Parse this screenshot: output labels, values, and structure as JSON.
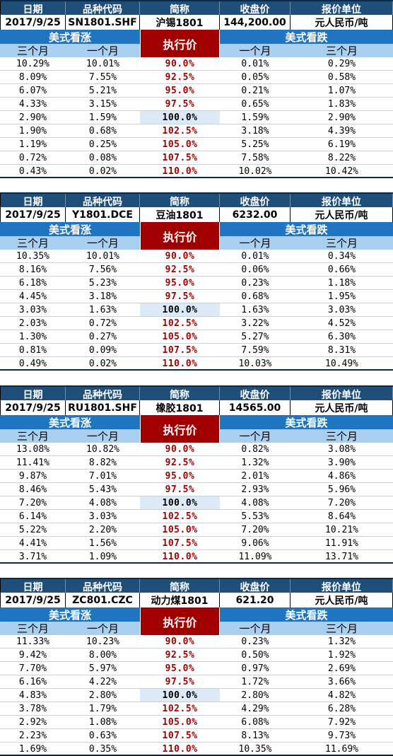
{
  "columns": {
    "date": "日期",
    "code": "品种代码",
    "short_name": "简称",
    "close": "收盘价",
    "unit": "报价单位"
  },
  "labels": {
    "us_call": "美式看涨",
    "us_put": "美式看跌",
    "strike": "执行价",
    "three_month": "三个月",
    "one_month": "一个月"
  },
  "blocks": [
    {
      "date": "2017/9/25",
      "code": "SN1801.SHF",
      "name": "沪锡1801",
      "close": "144,200.00",
      "unit": "元人民币/吨",
      "rows": [
        [
          "10.29%",
          "10.01%",
          "90.0%",
          "0.01%",
          "0.29%"
        ],
        [
          "8.09%",
          "7.55%",
          "92.5%",
          "0.05%",
          "0.58%"
        ],
        [
          "6.07%",
          "5.21%",
          "95.0%",
          "0.21%",
          "1.07%"
        ],
        [
          "4.33%",
          "3.15%",
          "97.5%",
          "0.65%",
          "1.83%"
        ],
        [
          "2.90%",
          "1.59%",
          "100.0%",
          "1.59%",
          "2.90%"
        ],
        [
          "1.90%",
          "0.68%",
          "102.5%",
          "3.18%",
          "4.39%"
        ],
        [
          "1.19%",
          "0.25%",
          "105.0%",
          "5.25%",
          "6.19%"
        ],
        [
          "0.72%",
          "0.08%",
          "107.5%",
          "7.58%",
          "8.22%"
        ],
        [
          "0.43%",
          "0.02%",
          "110.0%",
          "10.02%",
          "10.42%"
        ]
      ]
    },
    {
      "date": "2017/9/25",
      "code": "Y1801.DCE",
      "name": "豆油1801",
      "close": "6232.00",
      "unit": "元人民币/吨",
      "rows": [
        [
          "10.35%",
          "10.01%",
          "90.0%",
          "0.01%",
          "0.34%"
        ],
        [
          "8.16%",
          "7.56%",
          "92.5%",
          "0.06%",
          "0.66%"
        ],
        [
          "6.18%",
          "5.23%",
          "95.0%",
          "0.23%",
          "1.18%"
        ],
        [
          "4.45%",
          "3.18%",
          "97.5%",
          "0.68%",
          "1.95%"
        ],
        [
          "3.03%",
          "1.63%",
          "100.0%",
          "1.63%",
          "3.03%"
        ],
        [
          "2.03%",
          "0.72%",
          "102.5%",
          "3.22%",
          "4.52%"
        ],
        [
          "1.30%",
          "0.27%",
          "105.0%",
          "5.27%",
          "6.30%"
        ],
        [
          "0.81%",
          "0.09%",
          "107.5%",
          "7.59%",
          "8.31%"
        ],
        [
          "0.49%",
          "0.02%",
          "110.0%",
          "10.03%",
          "10.49%"
        ]
      ]
    },
    {
      "date": "2017/9/25",
      "code": "RU1801.SHF",
      "name": "橡胶1801",
      "close": "14565.00",
      "unit": "元人民币/吨",
      "rows": [
        [
          "13.08%",
          "10.82%",
          "90.0%",
          "0.82%",
          "3.08%"
        ],
        [
          "11.41%",
          "8.82%",
          "92.5%",
          "1.32%",
          "3.90%"
        ],
        [
          "9.87%",
          "7.01%",
          "95.0%",
          "2.01%",
          "4.86%"
        ],
        [
          "8.46%",
          "5.43%",
          "97.5%",
          "2.93%",
          "5.96%"
        ],
        [
          "7.20%",
          "4.08%",
          "100.0%",
          "4.08%",
          "7.20%"
        ],
        [
          "6.14%",
          "3.03%",
          "102.5%",
          "5.53%",
          "8.64%"
        ],
        [
          "5.22%",
          "2.20%",
          "105.0%",
          "7.20%",
          "10.21%"
        ],
        [
          "4.41%",
          "1.56%",
          "107.5%",
          "9.06%",
          "11.91%"
        ],
        [
          "3.71%",
          "1.09%",
          "110.0%",
          "11.09%",
          "13.71%"
        ]
      ]
    },
    {
      "date": "2017/9/25",
      "code": "ZC801.CZC",
      "name": "动力煤1801",
      "close": "621.20",
      "unit": "元人民币/吨",
      "rows": [
        [
          "11.33%",
          "10.23%",
          "90.0%",
          "0.23%",
          "1.32%"
        ],
        [
          "9.42%",
          "8.00%",
          "92.5%",
          "0.50%",
          "1.92%"
        ],
        [
          "7.70%",
          "5.97%",
          "95.0%",
          "0.97%",
          "2.69%"
        ],
        [
          "6.16%",
          "4.22%",
          "97.5%",
          "1.72%",
          "3.66%"
        ],
        [
          "4.83%",
          "2.80%",
          "100.0%",
          "2.80%",
          "4.82%"
        ],
        [
          "3.78%",
          "1.79%",
          "102.5%",
          "4.29%",
          "6.28%"
        ],
        [
          "2.92%",
          "1.08%",
          "105.0%",
          "6.08%",
          "7.92%"
        ],
        [
          "2.23%",
          "0.63%",
          "107.5%",
          "8.13%",
          "9.73%"
        ],
        [
          "1.69%",
          "0.35%",
          "110.0%",
          "10.35%",
          "11.69%"
        ]
      ]
    }
  ]
}
